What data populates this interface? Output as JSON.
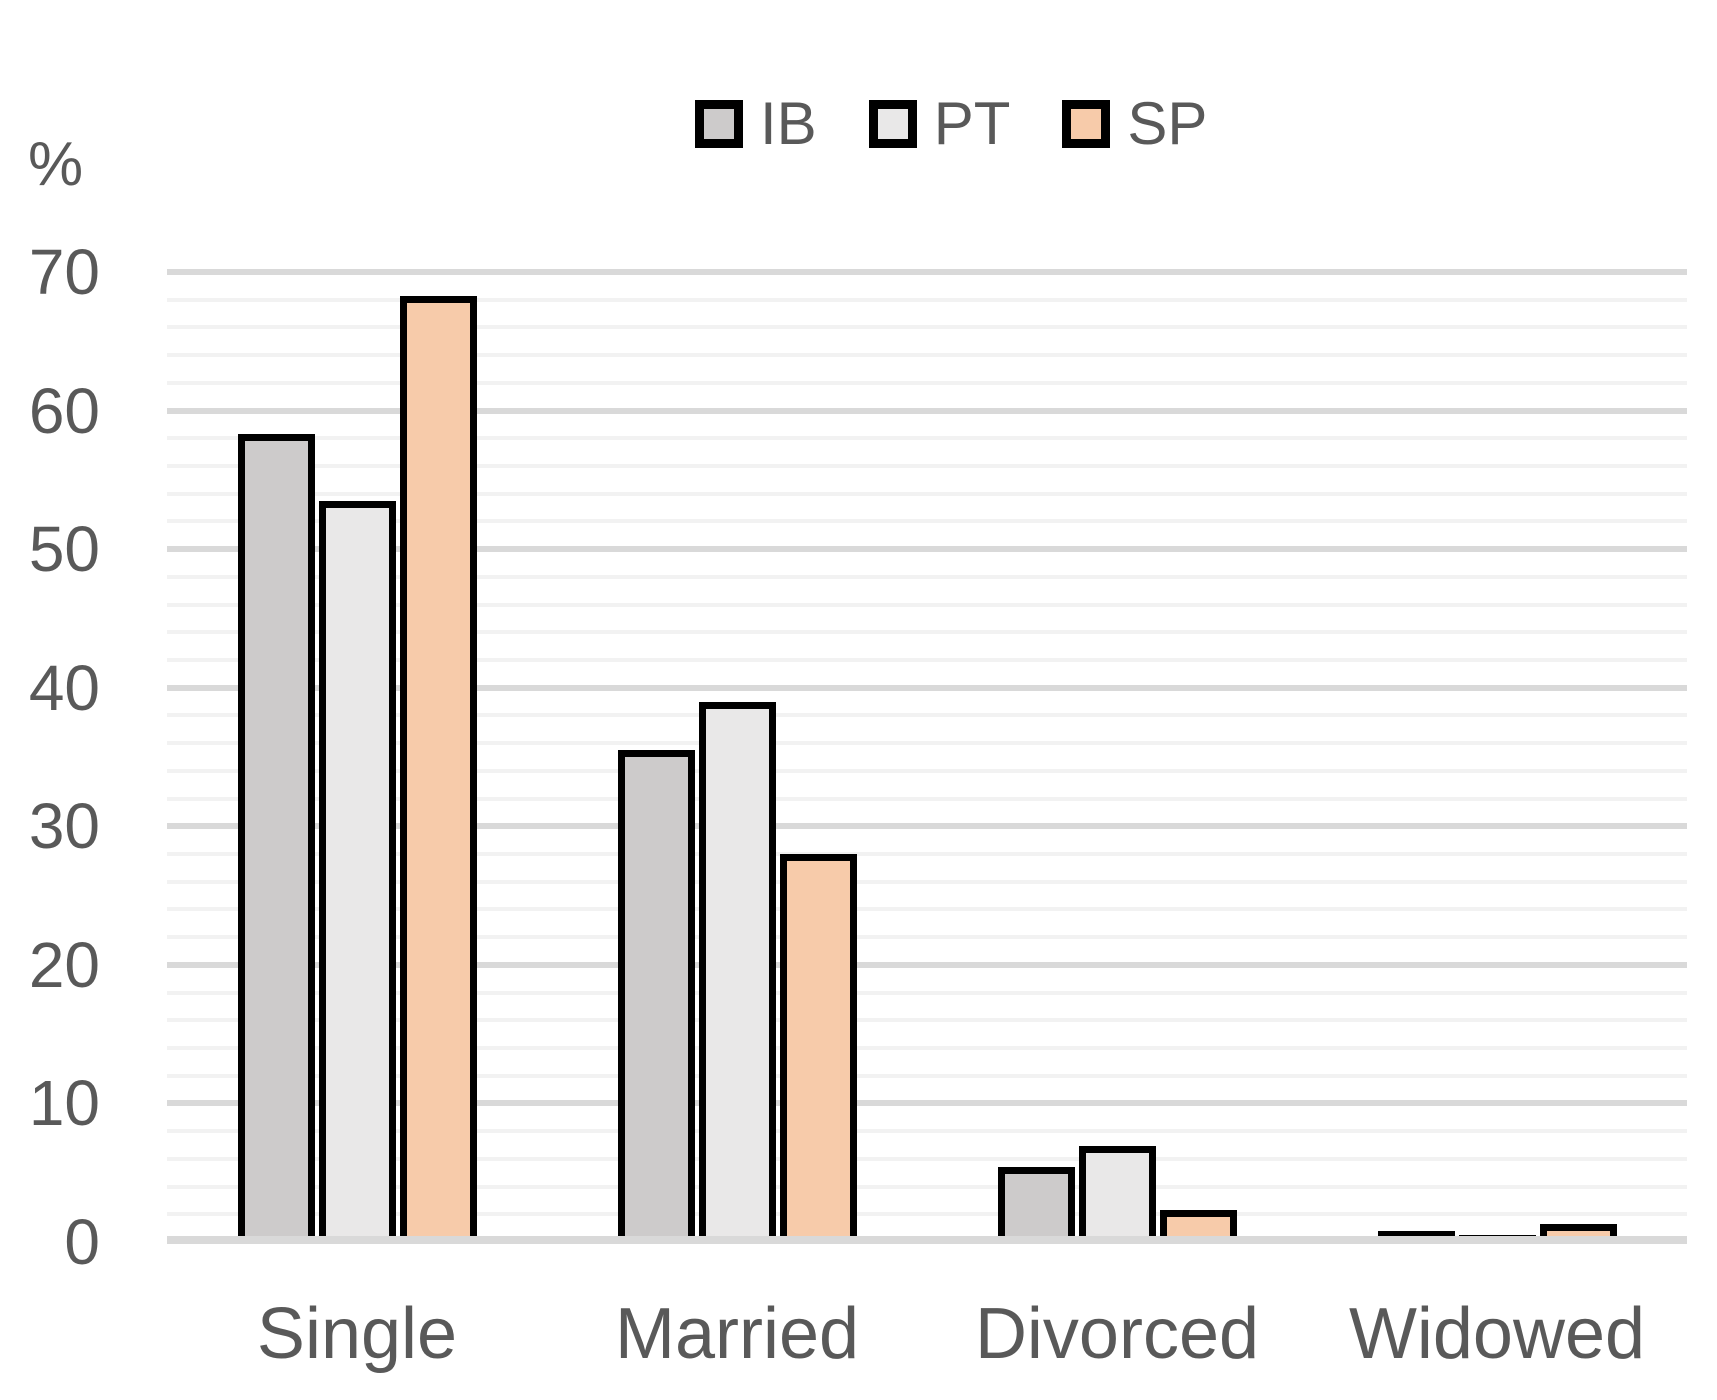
{
  "chart_data": {
    "type": "bar",
    "title": "",
    "xlabel": "",
    "ylabel": "%",
    "categories": [
      "Single",
      "Married",
      "Divorced",
      "Widowed"
    ],
    "series": [
      {
        "name": "IB",
        "color": "#cdcbcb",
        "values": [
          58.3,
          35.5,
          5.4,
          0.8
        ]
      },
      {
        "name": "PT",
        "color": "#e9e8e8",
        "values": [
          53.5,
          39.0,
          6.9,
          0.5
        ]
      },
      {
        "name": "SP",
        "color": "#f7cbaa",
        "values": [
          68.3,
          28.0,
          2.3,
          1.3
        ]
      }
    ],
    "ylim": [
      0,
      70
    ],
    "yticks": [
      "0",
      "10",
      "20",
      "30",
      "40",
      "50",
      "60",
      "70"
    ],
    "ytick_step": 10,
    "minor_grid_step": 2,
    "grid": true,
    "legend_position": "top-center",
    "colors": {
      "text": "#595959",
      "bar_border": "#000000",
      "major_grid": "#d9d9d9",
      "minor_grid": "#f2f2f2",
      "axis_line": "#d9d9d9",
      "background": "#ffffff"
    }
  }
}
